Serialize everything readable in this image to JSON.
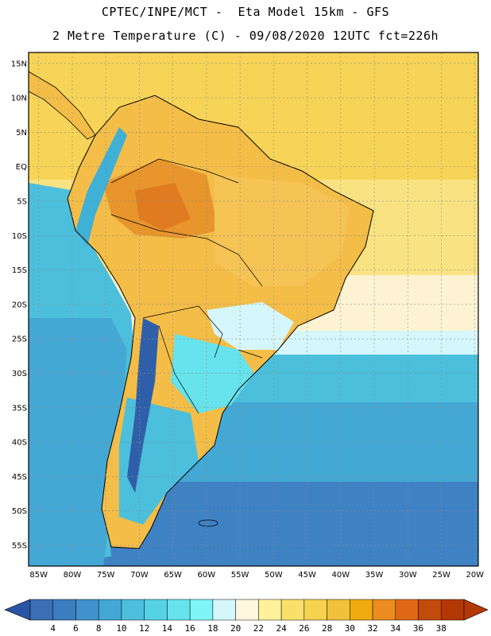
{
  "header": {
    "line1": "CPTEC/INPE/MCT -  Eta Model 15km - GFS",
    "line2": "2 Metre Temperature (C) - 09/08/2020 12UTC fct=226h"
  },
  "map": {
    "lat_labels": [
      "15N",
      "10N",
      "5N",
      "EQ",
      "5S",
      "10S",
      "15S",
      "20S",
      "25S",
      "30S",
      "35S",
      "40S",
      "45S",
      "50S",
      "55S"
    ],
    "lon_labels": [
      "85W",
      "80W",
      "75W",
      "70W",
      "65W",
      "60W",
      "55W",
      "50W",
      "45W",
      "40W",
      "35W",
      "30W",
      "25W",
      "20W"
    ],
    "grid": true,
    "lat_range": [
      15,
      -58
    ],
    "lon_range": [
      -85,
      -20
    ]
  },
  "colorbar": {
    "ticks": [
      "4",
      "6",
      "8",
      "10",
      "12",
      "14",
      "16",
      "18",
      "20",
      "22",
      "24",
      "26",
      "28",
      "30",
      "32",
      "34",
      "36",
      "38"
    ],
    "colors": [
      "#3a6fb5",
      "#3a7ec0",
      "#3f92cc",
      "#44a8d4",
      "#4cbfdc",
      "#55d2e3",
      "#66e3ec",
      "#7ff5f7",
      "#d5f7fb",
      "#fff6e0",
      "#fff29a",
      "#f9e06a",
      "#f5d24f",
      "#f0c23a",
      "#f0aa10",
      "#ec8c1e",
      "#e06814",
      "#c24a0a",
      "#b23806"
    ],
    "cold_end": "#2a55a5",
    "warm_end": "#b23806"
  }
}
